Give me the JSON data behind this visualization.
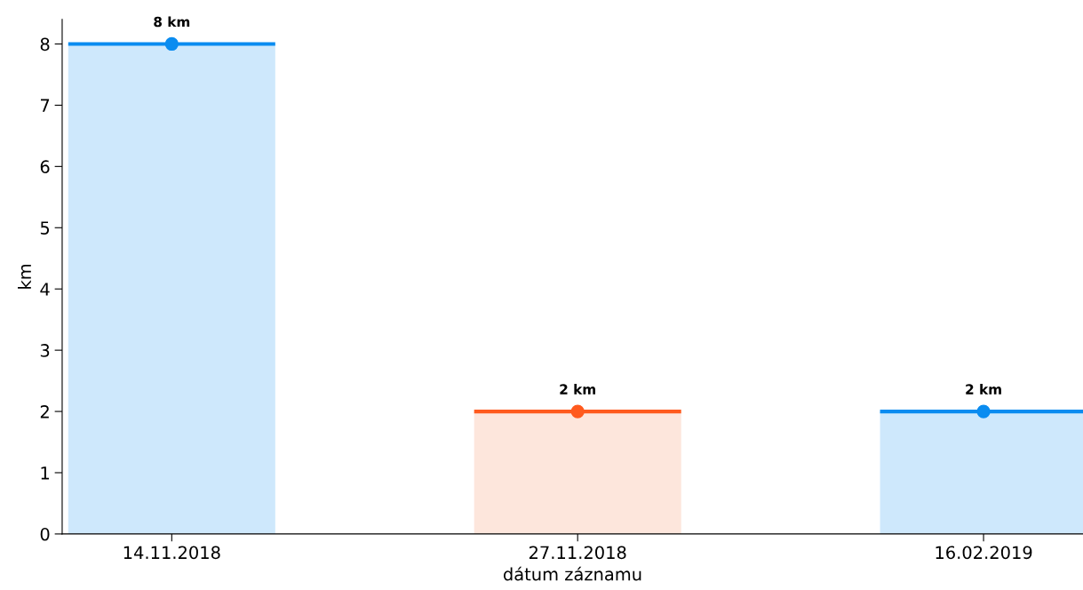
{
  "chart_data": {
    "type": "bar",
    "xlabel": "dátum záznamu",
    "ylabel": "km",
    "categories": [
      "14.11.2018",
      "27.11.2018",
      "16.02.2019"
    ],
    "series": [
      {
        "type": "bar",
        "values": [
          8,
          2,
          2
        ],
        "colors": [
          "#cee8fc",
          "#fde6dc",
          "#cee8fc"
        ],
        "value_labels": [
          "8 km",
          "2 km",
          "2 km"
        ]
      },
      {
        "type": "scatter",
        "x": [
          "14.11.2018",
          "27.11.2018",
          "16.02.2019"
        ],
        "values": [
          8,
          2,
          2
        ],
        "colors": [
          "#0a8cf0",
          "#ff5a1e",
          "#0a8cf0"
        ]
      }
    ],
    "marker": "circle",
    "ylim": [
      0,
      8.4
    ],
    "yticks": [
      0,
      1,
      2,
      3,
      4,
      5,
      6,
      7,
      8
    ],
    "grid": false,
    "legend": false
  }
}
